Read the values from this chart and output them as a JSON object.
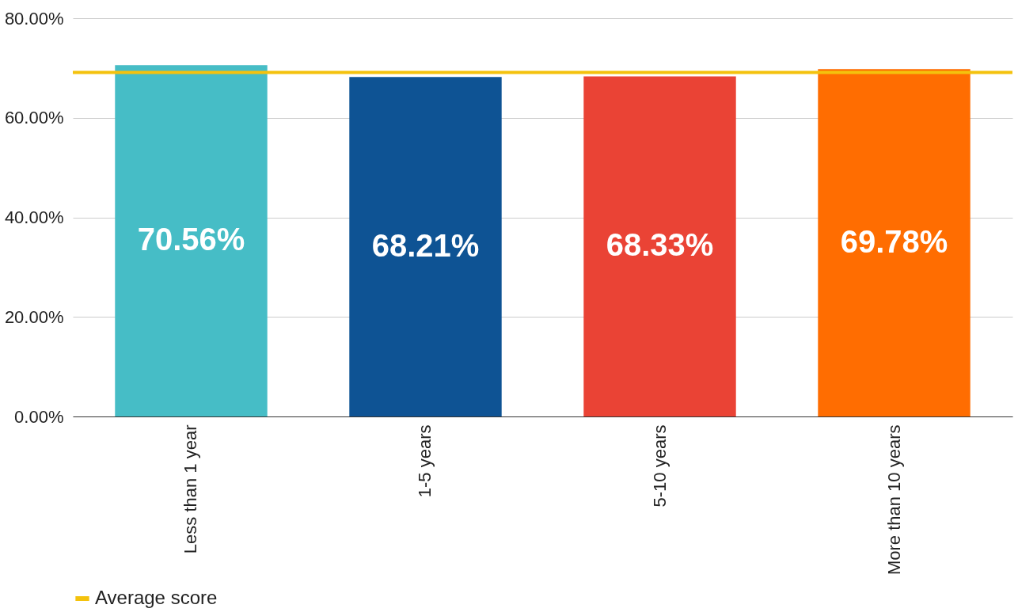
{
  "chart_data": {
    "type": "bar",
    "categories": [
      "Less than 1 year",
      "1-5 years",
      "5-10 years",
      "More than 10 years"
    ],
    "values": [
      70.56,
      68.21,
      68.33,
      69.78
    ],
    "colors": [
      "#46bdc6",
      "#0e5394",
      "#ea4335",
      "#ff6d01"
    ],
    "value_labels": [
      "70.56%",
      "68.21%",
      "68.33%",
      "69.78%"
    ],
    "ylim": [
      0,
      80
    ],
    "yticks": [
      {
        "value": 0,
        "label": "0.00%"
      },
      {
        "value": 20,
        "label": "20.00%"
      },
      {
        "value": 40,
        "label": "40.00%"
      },
      {
        "value": 60,
        "label": "60.00%"
      },
      {
        "value": 80,
        "label": "80.00%"
      }
    ],
    "grid": "y",
    "legend": "bottom",
    "ref_lines": [
      {
        "axis": "y",
        "value": 69.1,
        "label": "Average score",
        "color": "#f4c20d"
      }
    ]
  }
}
